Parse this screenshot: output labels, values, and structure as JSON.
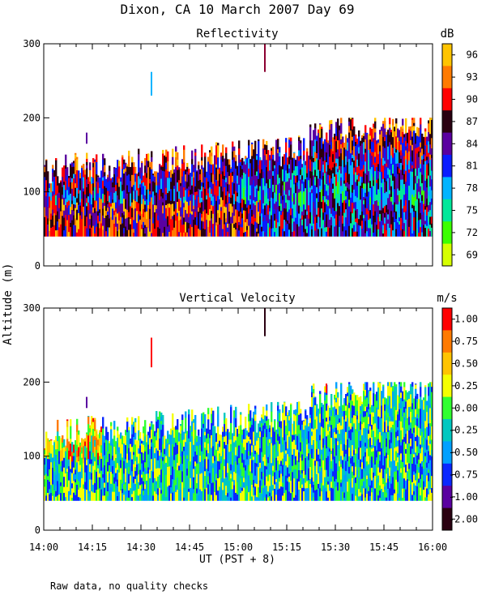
{
  "page": {
    "title": "Dixon, CA 10 March 2007  Day  69",
    "ylabel": "Altitude (m)",
    "xlabel": "UT  (PST + 8)",
    "footnote": "Raw data, no quality checks"
  },
  "chart_data": [
    {
      "type": "heatmap",
      "title": "Reflectivity",
      "colorbar_unit": "dB",
      "ylim": [
        0,
        300
      ],
      "yticks": [
        0,
        100,
        200,
        300
      ],
      "xlim": [
        "14:00",
        "16:00"
      ],
      "colorbar_ticks": [
        "96",
        "93",
        "90",
        "87",
        "84",
        "81",
        "78",
        "75",
        "72",
        "69"
      ],
      "colors": [
        "#ffc400",
        "#ff7a00",
        "#ff0000",
        "#2a0010",
        "#5a00a0",
        "#0a1cff",
        "#00b4ff",
        "#00e89a",
        "#3cff00",
        "#d6ff00"
      ],
      "data_range_m": [
        40,
        200
      ]
    },
    {
      "type": "heatmap",
      "title": "Vertical Velocity",
      "colorbar_unit": "m/s",
      "ylim": [
        0,
        300
      ],
      "yticks": [
        0,
        100,
        200,
        300
      ],
      "xlim": [
        "14:00",
        "16:00"
      ],
      "colorbar_ticks": [
        "1.00",
        "0.75",
        "0.50",
        "0.25",
        "0.00",
        "-0.25",
        "-0.50",
        "-0.75",
        "-1.00",
        "-2.00"
      ],
      "colors": [
        "#ff0000",
        "#ff7a00",
        "#ffc400",
        "#f5ff00",
        "#30ff30",
        "#00c8c0",
        "#00a0ff",
        "#0a28ff",
        "#5a00a0",
        "#2a0010"
      ],
      "data_range_m": [
        40,
        200
      ]
    }
  ],
  "xaxis": {
    "tick_labels": [
      "14:00",
      "14:15",
      "14:30",
      "14:45",
      "15:00",
      "15:15",
      "15:30",
      "15:45",
      "16:00"
    ]
  }
}
